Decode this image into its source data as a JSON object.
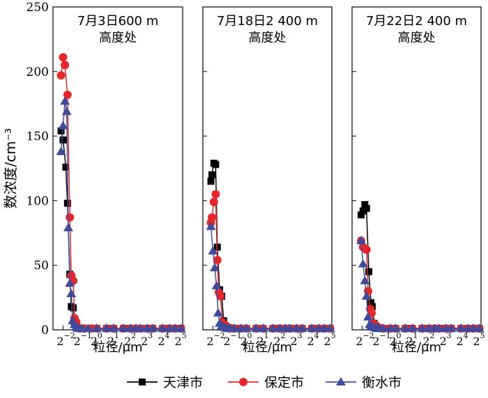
{
  "chart_data": {
    "type": "line",
    "ylabel": "数浓度/cm⁻³",
    "ylim": [
      0,
      250
    ],
    "yticks": [
      "0",
      "50",
      "100",
      "150",
      "200",
      "250"
    ],
    "x_scale": "log2",
    "xlim_exp": [
      -2.6,
      5.1
    ],
    "xticks": [
      {
        "exp": -2,
        "label": "2",
        "sup": "−2"
      },
      {
        "exp": -1,
        "label": "2",
        "sup": "−1"
      },
      {
        "exp": 0,
        "label": "2",
        "sup": "0"
      },
      {
        "exp": 1,
        "label": "2",
        "sup": "1"
      },
      {
        "exp": 2,
        "label": "2",
        "sup": "2"
      },
      {
        "exp": 3,
        "label": "2",
        "sup": "3"
      },
      {
        "exp": 4,
        "label": "2",
        "sup": "4"
      },
      {
        "exp": 5,
        "label": "2",
        "sup": "5"
      }
    ],
    "xlabel": "粒径/μm",
    "legend_position": "bottom-center",
    "series_styles": [
      {
        "name": "天津市",
        "color": "#000000",
        "marker": "square"
      },
      {
        "name": "保定市",
        "color": "#e8262a",
        "marker": "circle"
      },
      {
        "name": "衡水市",
        "color": "#3f4c9e",
        "marker": "triangle"
      }
    ],
    "panels": [
      {
        "title_line1": "7月3日600 m",
        "title_line2": "高度处",
        "show_y_axis": true,
        "series": [
          {
            "name": "天津市",
            "x": [
              0.23,
              0.25,
              0.28,
              0.3,
              0.33,
              0.35,
              0.38,
              0.4,
              0.43,
              0.45,
              0.48,
              0.5,
              0.6,
              0.8,
              1,
              1.5,
              2,
              3,
              4,
              5,
              6,
              8,
              10,
              15,
              20,
              25,
              32
            ],
            "y": [
              154,
              147,
              126,
              98,
              43,
              18,
              17,
              6,
              2,
              1.2,
              1,
              1,
              1,
              1,
              1,
              1,
              1,
              1,
              1,
              1,
              1,
              1,
              1,
              1,
              1,
              1,
              1
            ]
          },
          {
            "name": "保定市",
            "x": [
              0.23,
              0.25,
              0.27,
              0.3,
              0.33,
              0.35,
              0.38,
              0.4,
              0.43,
              0.45,
              0.48,
              0.5,
              0.6,
              0.8,
              1,
              1.5,
              2,
              3,
              4,
              5,
              6,
              8,
              10,
              15,
              20,
              25,
              32
            ],
            "y": [
              197,
              211,
              205,
              182,
              87,
              42,
              38,
              9,
              6,
              2,
              1.5,
              1,
              1,
              1,
              1,
              1,
              1,
              1,
              1,
              1,
              1,
              1,
              1,
              1,
              1,
              1,
              1
            ]
          },
          {
            "name": "衡水市",
            "x": [
              0.23,
              0.25,
              0.27,
              0.29,
              0.31,
              0.33,
              0.35,
              0.37,
              0.4,
              0.43,
              0.45,
              0.48,
              0.55,
              0.7,
              1,
              1.5,
              2,
              3,
              4,
              5,
              6,
              8,
              10,
              15,
              20,
              25,
              32
            ],
            "y": [
              138,
              158,
              177,
              169,
              79,
              36,
              28,
              7,
              4,
              2,
              1.5,
              1,
              1,
              1,
              1,
              1,
              1,
              1,
              1,
              1,
              1,
              1,
              1,
              1,
              1,
              1,
              1
            ]
          }
        ]
      },
      {
        "title_line1": "7月18日2 400 m",
        "title_line2": "高度处",
        "show_y_axis": false,
        "series": [
          {
            "name": "天津市",
            "x": [
              0.23,
              0.24,
              0.26,
              0.28,
              0.3,
              0.33,
              0.36,
              0.39,
              0.42,
              0.45,
              0.48,
              0.55,
              0.7,
              1,
              1.5,
              2,
              3,
              4,
              5,
              6,
              8,
              10,
              15,
              20,
              25,
              32
            ],
            "y": [
              115,
              120,
              129,
              128,
              64,
              31,
              26,
              7,
              3,
              2,
              1.5,
              1,
              1,
              1,
              1,
              1,
              1,
              1,
              1,
              1,
              1,
              1,
              1,
              1,
              1,
              1
            ]
          },
          {
            "name": "保定市",
            "x": [
              0.23,
              0.24,
              0.26,
              0.28,
              0.3,
              0.32,
              0.34,
              0.37,
              0.4,
              0.43,
              0.46,
              0.5,
              0.6,
              0.8,
              1,
              1.5,
              2,
              3,
              4,
              5,
              6,
              8,
              10,
              15,
              20,
              25,
              32
            ],
            "y": [
              83,
              87,
              99,
              105,
              54,
              29,
              26,
              6,
              4,
              2,
              1.5,
              1,
              1,
              1,
              1,
              1,
              1,
              1,
              1,
              1,
              1,
              1,
              1,
              1,
              1,
              1,
              1
            ]
          },
          {
            "name": "衡水市",
            "x": [
              0.23,
              0.25,
              0.27,
              0.29,
              0.31,
              0.33,
              0.36,
              0.39,
              0.42,
              0.45,
              0.5,
              0.6,
              0.8,
              1,
              1.5,
              2,
              3,
              4,
              5,
              6,
              8,
              10,
              15,
              20,
              25,
              32
            ],
            "y": [
              80,
              61,
              48,
              34,
              13,
              5,
              3,
              2,
              1.5,
              1,
              1,
              1,
              1,
              1,
              1,
              1,
              1,
              1,
              1,
              1,
              1,
              1,
              1,
              1,
              1,
              1
            ]
          }
        ]
      },
      {
        "title_line1": "7月22日2 400 m",
        "title_line2": "高度处",
        "show_y_axis": false,
        "series": [
          {
            "name": "天津市",
            "x": [
              0.24,
              0.26,
              0.28,
              0.3,
              0.33,
              0.36,
              0.38,
              0.41,
              0.44,
              0.47,
              0.5,
              0.6,
              0.8,
              1,
              1.5,
              2,
              3,
              4,
              5,
              6,
              8,
              10,
              15,
              20,
              25,
              32
            ],
            "y": [
              89,
              92,
              97,
              94,
              45,
              21,
              18,
              5,
              3,
              2,
              1.5,
              1,
              1,
              1,
              1,
              1,
              1,
              1,
              1,
              1,
              1,
              1,
              1,
              1,
              1,
              1
            ]
          },
          {
            "name": "保定市",
            "x": [
              0.24,
              0.26,
              0.28,
              0.3,
              0.32,
              0.35,
              0.37,
              0.4,
              0.43,
              0.46,
              0.5,
              0.6,
              0.8,
              1,
              1.5,
              2,
              3,
              4,
              5,
              6,
              8,
              10,
              15,
              20,
              25,
              32
            ],
            "y": [
              69,
              64,
              63,
              62,
              30,
              16,
              13,
              5,
              3,
              2,
              1.5,
              1,
              1,
              1,
              1,
              1,
              1,
              1,
              1,
              1,
              1,
              1,
              1,
              1,
              1,
              1
            ]
          },
          {
            "name": "衡水市",
            "x": [
              0.24,
              0.26,
              0.28,
              0.3,
              0.32,
              0.34,
              0.37,
              0.4,
              0.43,
              0.46,
              0.5,
              0.6,
              0.8,
              1,
              1.5,
              2,
              3,
              4,
              5,
              6,
              8,
              10,
              15,
              20,
              25,
              32
            ],
            "y": [
              69,
              51,
              38,
              26,
              10,
              4,
              3,
              2,
              1.5,
              1,
              1,
              1,
              1,
              1,
              1,
              1,
              1,
              1,
              1,
              1,
              1,
              1,
              1,
              1,
              1,
              1
            ]
          }
        ]
      }
    ]
  }
}
